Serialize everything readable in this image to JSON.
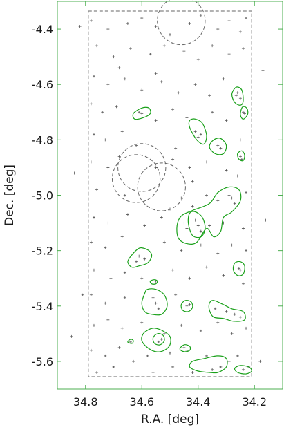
{
  "chart_data": {
    "type": "scatter",
    "title": "",
    "xlabel": "R.A. [deg]",
    "ylabel": "Dec. [deg]",
    "xlim": [
      34.9,
      34.1
    ],
    "ylim": [
      -5.7,
      -4.3
    ],
    "x_ticks": [
      34.8,
      34.6,
      34.4,
      34.2
    ],
    "y_ticks": [
      -4.4,
      -4.6,
      -4.8,
      -5.0,
      -5.2,
      -5.4,
      -5.6
    ],
    "x_tick_labels": [
      "34.8",
      "34.6",
      "34.4",
      "34.2"
    ],
    "y_tick_labels": [
      "-4.4",
      "-4.6",
      "-4.8",
      "-5.0",
      "-5.2",
      "-5.4",
      "-5.6"
    ],
    "frame_color": "#4caf50",
    "contour_color": "#19a019",
    "point_color": "#555555",
    "dashed_color": "#666666",
    "survey_boundary": {
      "ra_min": 34.21,
      "ra_max": 34.79,
      "dec_min": -5.655,
      "dec_max": -4.335
    },
    "masked_regions": [
      {
        "ra": 34.46,
        "dec": -4.37,
        "radius_deg": 0.085
      },
      {
        "ra": 34.6,
        "dec": -4.9,
        "radius_deg": 0.085
      },
      {
        "ra": 34.62,
        "dec": -4.94,
        "radius_deg": 0.085
      },
      {
        "ra": 34.53,
        "dec": -4.97,
        "radius_deg": 0.085
      }
    ],
    "contours": [
      {
        "name": "",
        "points": [
          [
            34.265,
            -4.61
          ],
          [
            34.245,
            -4.62
          ],
          [
            34.24,
            -4.66
          ],
          [
            34.25,
            -4.675
          ],
          [
            34.27,
            -4.665
          ],
          [
            34.28,
            -4.635
          ]
        ]
      },
      {
        "name": "",
        "points": [
          [
            34.235,
            -4.68
          ],
          [
            34.225,
            -4.69
          ],
          [
            34.225,
            -4.71
          ],
          [
            34.24,
            -4.725
          ],
          [
            34.25,
            -4.71
          ],
          [
            34.245,
            -4.685
          ]
        ]
      },
      {
        "name": "",
        "points": [
          [
            34.6,
            -4.685
          ],
          [
            34.575,
            -4.685
          ],
          [
            34.57,
            -4.705
          ],
          [
            34.595,
            -4.72
          ],
          [
            34.625,
            -4.725
          ],
          [
            34.63,
            -4.705
          ]
        ]
      },
      {
        "name": "",
        "points": [
          [
            34.41,
            -4.725
          ],
          [
            34.385,
            -4.74
          ],
          [
            34.37,
            -4.785
          ],
          [
            34.38,
            -4.815
          ],
          [
            34.405,
            -4.8
          ],
          [
            34.43,
            -4.755
          ],
          [
            34.43,
            -4.73
          ]
        ]
      },
      {
        "name": "",
        "points": [
          [
            34.32,
            -4.795
          ],
          [
            34.3,
            -4.82
          ],
          [
            34.31,
            -4.85
          ],
          [
            34.34,
            -4.85
          ],
          [
            34.36,
            -4.825
          ],
          [
            34.345,
            -4.8
          ]
        ]
      },
      {
        "name": "",
        "points": [
          [
            34.245,
            -4.84
          ],
          [
            34.235,
            -4.855
          ],
          [
            34.24,
            -4.875
          ],
          [
            34.255,
            -4.87
          ],
          [
            34.26,
            -4.85
          ]
        ]
      },
      {
        "name": "",
        "points": [
          [
            34.29,
            -4.97
          ],
          [
            34.255,
            -4.98
          ],
          [
            34.25,
            -5.02
          ],
          [
            34.28,
            -5.06
          ],
          [
            34.31,
            -5.08
          ],
          [
            34.32,
            -5.13
          ],
          [
            34.345,
            -5.15
          ],
          [
            34.37,
            -5.12
          ],
          [
            34.405,
            -5.17
          ],
          [
            34.44,
            -5.175
          ],
          [
            34.47,
            -5.155
          ],
          [
            34.475,
            -5.11
          ],
          [
            34.46,
            -5.075
          ],
          [
            34.42,
            -5.055
          ],
          [
            34.36,
            -5.03
          ],
          [
            34.33,
            -4.99
          ]
        ]
      },
      {
        "name": "",
        "points": [
          [
            34.41,
            -5.06
          ],
          [
            34.385,
            -5.08
          ],
          [
            34.375,
            -5.12
          ],
          [
            34.39,
            -5.15
          ],
          [
            34.42,
            -5.145
          ],
          [
            34.435,
            -5.1
          ],
          [
            34.43,
            -5.065
          ]
        ]
      },
      {
        "name": "",
        "points": [
          [
            34.6,
            -5.19
          ],
          [
            34.575,
            -5.2
          ],
          [
            34.565,
            -5.22
          ],
          [
            34.58,
            -5.245
          ],
          [
            34.61,
            -5.255
          ],
          [
            34.635,
            -5.26
          ],
          [
            34.65,
            -5.24
          ],
          [
            34.635,
            -5.215
          ],
          [
            34.615,
            -5.195
          ]
        ]
      },
      {
        "name": "",
        "points": [
          [
            34.25,
            -5.24
          ],
          [
            34.235,
            -5.255
          ],
          [
            34.24,
            -5.285
          ],
          [
            34.26,
            -5.29
          ],
          [
            34.275,
            -5.27
          ],
          [
            34.27,
            -5.245
          ]
        ]
      },
      {
        "name": "",
        "points": [
          [
            34.555,
            -5.305
          ],
          [
            34.545,
            -5.31
          ],
          [
            34.55,
            -5.32
          ],
          [
            34.565,
            -5.32
          ],
          [
            34.57,
            -5.31
          ]
        ]
      },
      {
        "name": "",
        "points": [
          [
            34.58,
            -5.34
          ],
          [
            34.59,
            -5.355
          ],
          [
            34.6,
            -5.39
          ],
          [
            34.59,
            -5.42
          ],
          [
            34.565,
            -5.43
          ],
          [
            34.53,
            -5.43
          ],
          [
            34.51,
            -5.4
          ],
          [
            34.52,
            -5.36
          ],
          [
            34.55,
            -5.34
          ]
        ]
      },
      {
        "name": "",
        "points": [
          [
            34.445,
            -5.38
          ],
          [
            34.425,
            -5.385
          ],
          [
            34.42,
            -5.405
          ],
          [
            34.435,
            -5.42
          ],
          [
            34.455,
            -5.415
          ],
          [
            34.46,
            -5.395
          ]
        ]
      },
      {
        "name": "",
        "points": [
          [
            34.345,
            -5.38
          ],
          [
            34.31,
            -5.395
          ],
          [
            34.28,
            -5.41
          ],
          [
            34.24,
            -5.42
          ],
          [
            34.235,
            -5.45
          ],
          [
            34.275,
            -5.455
          ],
          [
            34.31,
            -5.445
          ],
          [
            34.345,
            -5.44
          ],
          [
            34.36,
            -5.415
          ],
          [
            34.36,
            -5.39
          ]
        ]
      },
      {
        "name": "",
        "points": [
          [
            34.555,
            -5.48
          ],
          [
            34.525,
            -5.49
          ],
          [
            34.5,
            -5.51
          ],
          [
            34.5,
            -5.54
          ],
          [
            34.52,
            -5.56
          ],
          [
            34.55,
            -5.565
          ],
          [
            34.58,
            -5.55
          ],
          [
            34.6,
            -5.525
          ],
          [
            34.595,
            -5.5
          ],
          [
            34.575,
            -5.485
          ]
        ]
      },
      {
        "name": "",
        "points": [
          [
            34.545,
            -5.5
          ],
          [
            34.525,
            -5.505
          ],
          [
            34.52,
            -5.525
          ],
          [
            34.535,
            -5.54
          ],
          [
            34.555,
            -5.535
          ],
          [
            34.56,
            -5.515
          ]
        ]
      },
      {
        "name": "",
        "points": [
          [
            34.64,
            -5.52
          ],
          [
            34.63,
            -5.525
          ],
          [
            34.635,
            -5.535
          ],
          [
            34.65,
            -5.53
          ]
        ]
      },
      {
        "name": "",
        "points": [
          [
            34.45,
            -5.54
          ],
          [
            34.43,
            -5.545
          ],
          [
            34.43,
            -5.56
          ],
          [
            34.45,
            -5.565
          ],
          [
            34.465,
            -5.555
          ]
        ]
      },
      {
        "name": "",
        "points": [
          [
            34.33,
            -5.58
          ],
          [
            34.3,
            -5.59
          ],
          [
            34.3,
            -5.62
          ],
          [
            34.33,
            -5.64
          ],
          [
            34.36,
            -5.64
          ],
          [
            34.4,
            -5.635
          ],
          [
            34.43,
            -5.62
          ],
          [
            34.42,
            -5.6
          ],
          [
            34.38,
            -5.59
          ]
        ]
      },
      {
        "name": "",
        "points": [
          [
            34.25,
            -5.615
          ],
          [
            34.22,
            -5.62
          ],
          [
            34.21,
            -5.635
          ],
          [
            34.23,
            -5.645
          ],
          [
            34.26,
            -5.64
          ],
          [
            34.27,
            -5.625
          ]
        ]
      }
    ],
    "sources": [
      [
        34.78,
        -4.37
      ],
      [
        34.72,
        -4.4
      ],
      [
        34.65,
        -4.38
      ],
      [
        34.6,
        -4.36
      ],
      [
        34.55,
        -4.39
      ],
      [
        34.5,
        -4.42
      ],
      [
        34.43,
        -4.38
      ],
      [
        34.39,
        -4.35
      ],
      [
        34.33,
        -4.4
      ],
      [
        34.29,
        -4.37
      ],
      [
        34.25,
        -4.41
      ],
      [
        34.23,
        -4.36
      ],
      [
        34.76,
        -4.46
      ],
      [
        34.7,
        -4.5
      ],
      [
        34.64,
        -4.47
      ],
      [
        34.57,
        -4.49
      ],
      [
        34.52,
        -4.46
      ],
      [
        34.45,
        -4.48
      ],
      [
        34.4,
        -4.51
      ],
      [
        34.35,
        -4.46
      ],
      [
        34.29,
        -4.49
      ],
      [
        34.24,
        -4.47
      ],
      [
        34.68,
        -4.54
      ],
      [
        34.55,
        -4.56
      ],
      [
        34.77,
        -4.57
      ],
      [
        34.72,
        -4.6
      ],
      [
        34.66,
        -4.58
      ],
      [
        34.6,
        -4.62
      ],
      [
        34.53,
        -4.59
      ],
      [
        34.47,
        -4.63
      ],
      [
        34.41,
        -4.6
      ],
      [
        34.36,
        -4.64
      ],
      [
        34.31,
        -4.58
      ],
      [
        34.26,
        -4.63
      ],
      [
        34.25,
        -4.65
      ],
      [
        34.265,
        -4.64
      ],
      [
        34.78,
        -4.67
      ],
      [
        34.74,
        -4.7
      ],
      [
        34.69,
        -4.68
      ],
      [
        34.61,
        -4.7
      ],
      [
        34.6,
        -4.705
      ],
      [
        34.55,
        -4.73
      ],
      [
        34.49,
        -4.69
      ],
      [
        34.44,
        -4.72
      ],
      [
        34.35,
        -4.7
      ],
      [
        34.3,
        -4.73
      ],
      [
        34.24,
        -4.7
      ],
      [
        34.235,
        -4.705
      ],
      [
        34.77,
        -4.78
      ],
      [
        34.73,
        -4.8
      ],
      [
        34.67,
        -4.77
      ],
      [
        34.62,
        -4.82
      ],
      [
        34.56,
        -4.8
      ],
      [
        34.48,
        -4.83
      ],
      [
        34.41,
        -4.77
      ],
      [
        34.4,
        -4.79
      ],
      [
        34.39,
        -4.78
      ],
      [
        34.33,
        -4.82
      ],
      [
        34.32,
        -4.83
      ],
      [
        34.25,
        -4.8
      ],
      [
        34.78,
        -4.88
      ],
      [
        34.72,
        -4.9
      ],
      [
        34.68,
        -4.86
      ],
      [
        34.55,
        -4.9
      ],
      [
        34.49,
        -4.87
      ],
      [
        34.43,
        -4.9
      ],
      [
        34.37,
        -4.88
      ],
      [
        34.3,
        -4.91
      ],
      [
        34.25,
        -4.86
      ],
      [
        34.245,
        -4.87
      ],
      [
        34.26,
        -4.93
      ],
      [
        34.42,
        -4.95
      ],
      [
        34.76,
        -4.98
      ],
      [
        34.71,
        -5.01
      ],
      [
        34.66,
        -5.0
      ],
      [
        34.46,
        -5.01
      ],
      [
        34.42,
        -5.04
      ],
      [
        34.37,
        -5.0
      ],
      [
        34.33,
        -5.02
      ],
      [
        34.29,
        -5.0
      ],
      [
        34.28,
        -5.01
      ],
      [
        34.27,
        -5.03
      ],
      [
        34.23,
        -4.99
      ],
      [
        34.5,
        -5.05
      ],
      [
        34.77,
        -5.08
      ],
      [
        34.72,
        -5.1
      ],
      [
        34.65,
        -5.07
      ],
      [
        34.59,
        -5.11
      ],
      [
        34.53,
        -5.08
      ],
      [
        34.45,
        -5.1
      ],
      [
        34.44,
        -5.12
      ],
      [
        34.41,
        -5.09
      ],
      [
        34.4,
        -5.11
      ],
      [
        34.39,
        -5.13
      ],
      [
        34.36,
        -5.11
      ],
      [
        34.31,
        -5.1
      ],
      [
        34.24,
        -5.12
      ],
      [
        34.78,
        -5.17
      ],
      [
        34.73,
        -5.19
      ],
      [
        34.67,
        -5.15
      ],
      [
        34.61,
        -5.22
      ],
      [
        34.62,
        -5.24
      ],
      [
        34.59,
        -5.23
      ],
      [
        34.52,
        -5.17
      ],
      [
        34.46,
        -5.2
      ],
      [
        34.39,
        -5.18
      ],
      [
        34.33,
        -5.21
      ],
      [
        34.28,
        -5.18
      ],
      [
        34.23,
        -5.2
      ],
      [
        34.77,
        -5.27
      ],
      [
        34.71,
        -5.3
      ],
      [
        34.66,
        -5.28
      ],
      [
        34.6,
        -5.3
      ],
      [
        34.55,
        -5.31
      ],
      [
        34.49,
        -5.27
      ],
      [
        34.43,
        -5.3
      ],
      [
        34.37,
        -5.26
      ],
      [
        34.31,
        -5.29
      ],
      [
        34.255,
        -5.265
      ],
      [
        34.25,
        -5.27
      ],
      [
        34.24,
        -5.32
      ],
      [
        34.78,
        -5.36
      ],
      [
        34.73,
        -5.39
      ],
      [
        34.66,
        -5.37
      ],
      [
        34.56,
        -5.37
      ],
      [
        34.55,
        -5.39
      ],
      [
        34.54,
        -5.41
      ],
      [
        34.48,
        -5.36
      ],
      [
        34.44,
        -5.4
      ],
      [
        34.43,
        -5.395
      ],
      [
        34.34,
        -5.41
      ],
      [
        34.3,
        -5.42
      ],
      [
        34.27,
        -5.43
      ],
      [
        34.25,
        -5.44
      ],
      [
        34.77,
        -5.47
      ],
      [
        34.72,
        -5.45
      ],
      [
        34.67,
        -5.48
      ],
      [
        34.6,
        -5.46
      ],
      [
        34.52,
        -5.5
      ],
      [
        34.53,
        -5.52
      ],
      [
        34.54,
        -5.53
      ],
      [
        34.46,
        -5.47
      ],
      [
        34.39,
        -5.49
      ],
      [
        34.33,
        -5.46
      ],
      [
        34.28,
        -5.5
      ],
      [
        34.23,
        -5.48
      ],
      [
        34.78,
        -5.56
      ],
      [
        34.73,
        -5.58
      ],
      [
        34.68,
        -5.55
      ],
      [
        34.64,
        -5.53
      ],
      [
        34.58,
        -5.58
      ],
      [
        34.5,
        -5.57
      ],
      [
        34.45,
        -5.55
      ],
      [
        34.44,
        -5.56
      ],
      [
        34.37,
        -5.58
      ],
      [
        34.32,
        -5.62
      ],
      [
        34.35,
        -5.63
      ],
      [
        34.24,
        -5.63
      ],
      [
        34.22,
        -5.62
      ],
      [
        34.76,
        -5.64
      ],
      [
        34.7,
        -5.62
      ],
      [
        34.63,
        -5.6
      ],
      [
        34.56,
        -5.64
      ],
      [
        34.49,
        -5.62
      ],
      [
        34.42,
        -5.64
      ],
      [
        34.29,
        -5.6
      ],
      [
        34.26,
        -5.58
      ],
      [
        34.82,
        -4.39
      ],
      [
        34.84,
        -4.92
      ],
      [
        34.81,
        -5.36
      ],
      [
        34.85,
        -5.51
      ],
      [
        34.17,
        -4.55
      ],
      [
        34.16,
        -5.09
      ],
      [
        34.18,
        -5.6
      ]
    ]
  }
}
